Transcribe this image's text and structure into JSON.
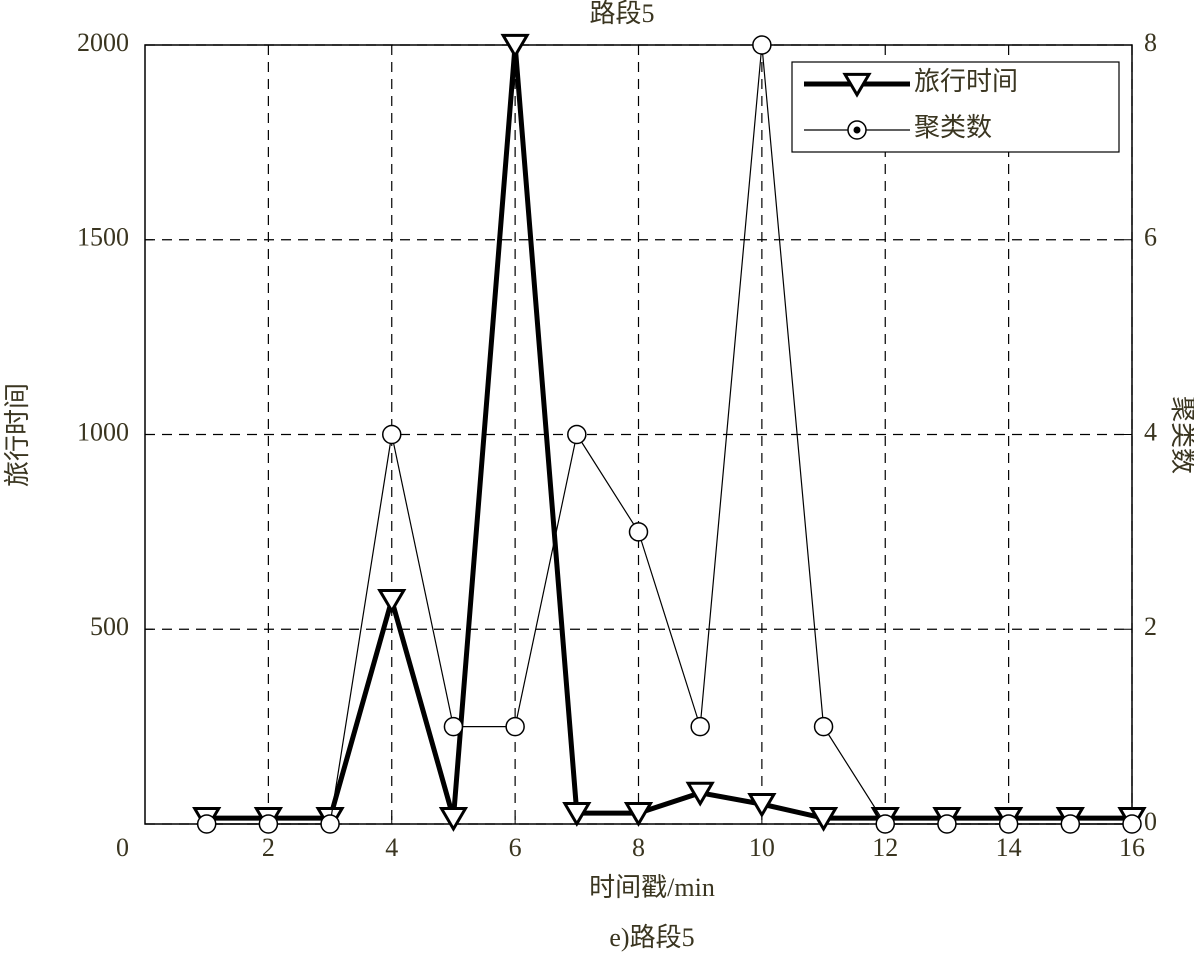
{
  "chart_data": {
    "type": "line",
    "title": "路段5",
    "caption": "e)路段5",
    "x_label": "时间戳/min",
    "y_label": "旅行时间",
    "y2_label": "聚类数",
    "x": [
      1,
      2,
      3,
      4,
      5,
      6,
      7,
      8,
      9,
      10,
      11,
      12,
      13,
      14,
      15,
      16
    ],
    "series": [
      {
        "name": "旅行时间",
        "color": "#000000",
        "marker": "triangle-down",
        "axis": "y",
        "values": [
          15,
          15,
          15,
          575,
          15,
          2000,
          28,
          28,
          80,
          51,
          15,
          15,
          15,
          15,
          15,
          15
        ]
      },
      {
        "name": "聚类数",
        "color": "#000000",
        "marker": "circle",
        "axis": "y2",
        "values": [
          0,
          0,
          0,
          4,
          1,
          1,
          4,
          3,
          1,
          8,
          1,
          0,
          0,
          0,
          0,
          0
        ]
      }
    ],
    "xlim": [
      0,
      16
    ],
    "xticks": [
      2,
      4,
      6,
      8,
      10,
      12,
      14,
      16
    ],
    "ylim": [
      0,
      2000
    ],
    "yticks": [
      0,
      500,
      1000,
      1500,
      2000
    ],
    "y2lim": [
      0,
      8
    ],
    "y2ticks": [
      0,
      2,
      4,
      6,
      8
    ],
    "grid": true,
    "legend": "upper right"
  }
}
